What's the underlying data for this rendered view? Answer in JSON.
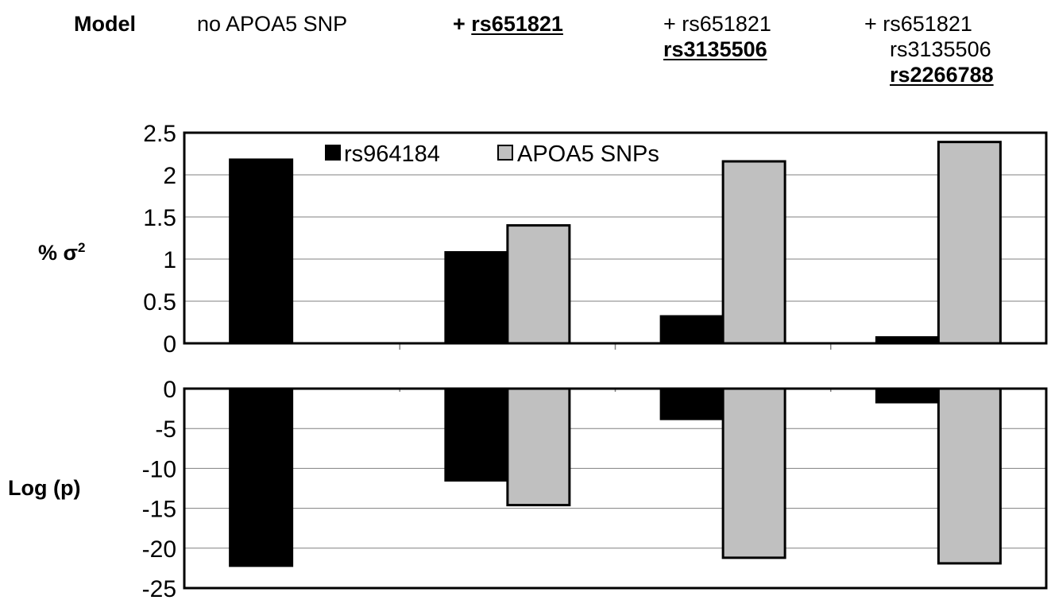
{
  "header": {
    "label": "Model",
    "columns": [
      {
        "lines": [
          {
            "prefix": "",
            "text": "no APOA5  SNP",
            "bold": false,
            "underline": false
          }
        ]
      },
      {
        "lines": [
          {
            "prefix": "+ ",
            "text": "rs651821",
            "bold": true,
            "underline": true
          }
        ]
      },
      {
        "lines": [
          {
            "prefix": "+ ",
            "text": "rs651821",
            "bold": false,
            "underline": false
          },
          {
            "prefix": "",
            "text": "rs3135506",
            "bold": true,
            "underline": true
          }
        ]
      },
      {
        "lines": [
          {
            "prefix": "+ ",
            "text": "rs651821",
            "bold": false,
            "underline": false
          },
          {
            "prefix": "",
            "text": "rs3135506",
            "bold": false,
            "underline": false
          },
          {
            "prefix": "",
            "text": "rs2266788",
            "bold": true,
            "underline": true
          }
        ]
      }
    ]
  },
  "chart_data": [
    {
      "type": "bar",
      "ylabel_main": "% σ",
      "ylabel_sup": "2",
      "categories": [
        "no APOA5 SNP",
        "+ rs651821",
        "+ rs651821 rs3135506",
        "+ rs651821 rs3135506 rs2266788"
      ],
      "series": [
        {
          "name": "rs964184",
          "values": [
            2.18,
            1.08,
            0.32,
            0.07
          ]
        },
        {
          "name": "APOA5 SNPs",
          "values": [
            0,
            1.4,
            2.16,
            2.39
          ]
        }
      ],
      "ylim": [
        0,
        2.5
      ],
      "yticks": [
        "0",
        "0.5",
        "1",
        "1.5",
        "2",
        "2.5"
      ],
      "grid": true,
      "legend": "top"
    },
    {
      "type": "bar",
      "ylabel": "Log (p)",
      "categories": [
        "no APOA5 SNP",
        "+ rs651821",
        "+ rs651821 rs3135506",
        "+ rs651821 rs3135506 rs2266788"
      ],
      "series": [
        {
          "name": "rs964184",
          "values": [
            -22.2,
            -11.5,
            -3.8,
            -1.7
          ]
        },
        {
          "name": "APOA5 SNPs",
          "values": [
            0,
            -14.6,
            -21.2,
            -21.9
          ]
        }
      ],
      "ylim": [
        -25,
        0
      ],
      "yticks": [
        "0",
        "-5",
        "-10",
        "-15",
        "-20",
        "-25"
      ],
      "grid": true
    }
  ],
  "colors": {
    "series1": "#000000",
    "series2": "#c0c0c0",
    "grid": "#808080"
  }
}
